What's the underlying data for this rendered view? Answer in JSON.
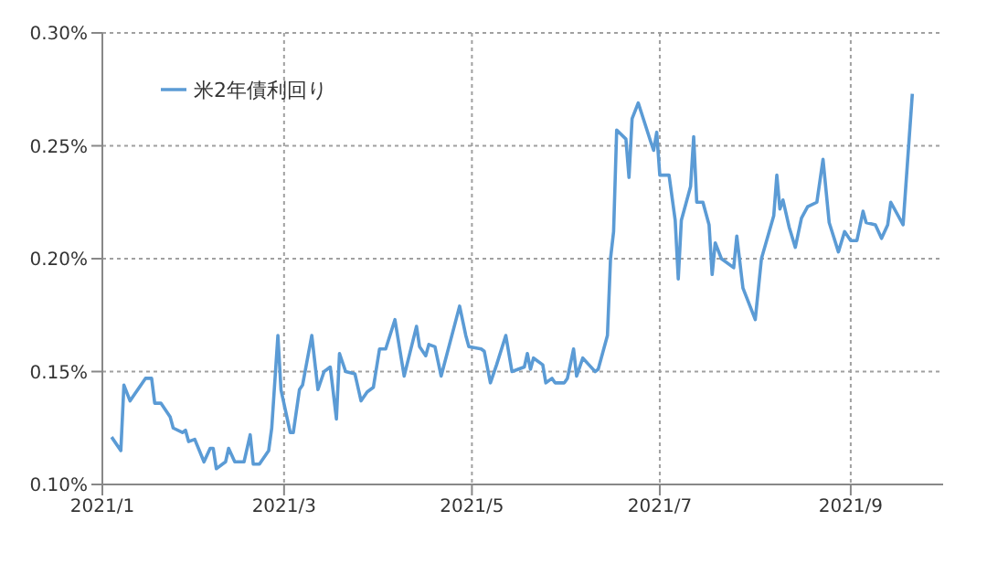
{
  "chart_data": {
    "type": "line",
    "x": [
      "2021-01-04",
      "2021-01-07",
      "2021-01-08",
      "2021-01-10",
      "2021-01-15",
      "2021-01-17",
      "2021-01-18",
      "2021-01-20",
      "2021-01-23",
      "2021-01-24",
      "2021-01-27",
      "2021-01-28",
      "2021-01-29",
      "2021-01-31",
      "2021-02-03",
      "2021-02-05",
      "2021-02-06",
      "2021-02-07",
      "2021-02-10",
      "2021-02-11",
      "2021-02-13",
      "2021-02-16",
      "2021-02-18",
      "2021-02-19",
      "2021-02-21",
      "2021-02-24",
      "2021-02-25",
      "2021-02-27",
      "2021-02-28",
      "2021-03-03",
      "2021-03-04",
      "2021-03-06",
      "2021-03-07",
      "2021-03-10",
      "2021-03-12",
      "2021-03-14",
      "2021-03-16",
      "2021-03-18",
      "2021-03-19",
      "2021-03-21",
      "2021-03-24",
      "2021-03-26",
      "2021-03-28",
      "2021-03-30",
      "2021-04-01",
      "2021-04-03",
      "2021-04-06",
      "2021-04-09",
      "2021-04-13",
      "2021-04-14",
      "2021-04-16",
      "2021-04-17",
      "2021-04-19",
      "2021-04-21",
      "2021-04-27",
      "2021-04-29",
      "2021-04-30",
      "2021-05-04",
      "2021-05-05",
      "2021-05-07",
      "2021-05-09",
      "2021-05-12",
      "2021-05-14",
      "2021-05-18",
      "2021-05-19",
      "2021-05-20",
      "2021-05-21",
      "2021-05-24",
      "2021-05-25",
      "2021-05-27",
      "2021-05-28",
      "2021-05-31",
      "2021-06-01",
      "2021-06-03",
      "2021-06-04",
      "2021-06-06",
      "2021-06-08",
      "2021-06-10",
      "2021-06-11",
      "2021-06-14",
      "2021-06-15",
      "2021-06-16",
      "2021-06-17",
      "2021-06-20",
      "2021-06-21",
      "2021-06-22",
      "2021-06-24",
      "2021-06-28",
      "2021-06-29",
      "2021-06-30",
      "2021-07-01",
      "2021-07-04",
      "2021-07-06",
      "2021-07-07",
      "2021-07-08",
      "2021-07-11",
      "2021-07-12",
      "2021-07-13",
      "2021-07-15",
      "2021-07-17",
      "2021-07-18",
      "2021-07-19",
      "2021-07-21",
      "2021-07-25",
      "2021-07-26",
      "2021-07-28",
      "2021-08-01",
      "2021-08-03",
      "2021-08-07",
      "2021-08-08",
      "2021-08-09",
      "2021-08-10",
      "2021-08-12",
      "2021-08-14",
      "2021-08-16",
      "2021-08-18",
      "2021-08-21",
      "2021-08-23",
      "2021-08-25",
      "2021-08-28",
      "2021-08-30",
      "2021-09-01",
      "2021-09-03",
      "2021-09-05",
      "2021-09-06",
      "2021-09-09",
      "2021-09-11",
      "2021-09-13",
      "2021-09-14",
      "2021-09-18",
      "2021-09-21"
    ],
    "series": [
      {
        "name": "米2年債利回り",
        "color": "#5b9bd5",
        "values": [
          0.121,
          0.115,
          0.144,
          0.137,
          0.147,
          0.147,
          0.136,
          0.136,
          0.13,
          0.125,
          0.123,
          0.124,
          0.119,
          0.12,
          0.11,
          0.116,
          0.116,
          0.107,
          0.11,
          0.116,
          0.11,
          0.11,
          0.122,
          0.109,
          0.109,
          0.115,
          0.125,
          0.166,
          0.142,
          0.123,
          0.123,
          0.142,
          0.144,
          0.166,
          0.142,
          0.15,
          0.152,
          0.129,
          0.158,
          0.15,
          0.149,
          0.137,
          0.141,
          0.143,
          0.16,
          0.16,
          0.173,
          0.148,
          0.17,
          0.161,
          0.157,
          0.162,
          0.161,
          0.148,
          0.179,
          0.166,
          0.161,
          0.16,
          0.159,
          0.145,
          0.153,
          0.166,
          0.15,
          0.152,
          0.158,
          0.151,
          0.156,
          0.153,
          0.145,
          0.147,
          0.145,
          0.145,
          0.147,
          0.16,
          0.148,
          0.156,
          0.153,
          0.15,
          0.151,
          0.166,
          0.2,
          0.212,
          0.257,
          0.253,
          0.236,
          0.262,
          0.269,
          0.252,
          0.248,
          0.256,
          0.237,
          0.237,
          0.217,
          0.191,
          0.217,
          0.232,
          0.254,
          0.225,
          0.225,
          0.215,
          0.193,
          0.207,
          0.2,
          0.196,
          0.21,
          0.187,
          0.173,
          0.2,
          0.219,
          0.237,
          0.222,
          0.226,
          0.214,
          0.205,
          0.218,
          0.223,
          0.225,
          0.244,
          0.216,
          0.203,
          0.212,
          0.208,
          0.208,
          0.221,
          0.216,
          0.215,
          0.209,
          0.215,
          0.225,
          0.215,
          0.273
        ]
      }
    ],
    "xlim": [
      "2021-01-01",
      "2021-10-01"
    ],
    "xticks": [
      {
        "value": "2021-01-01",
        "label": "2021/1"
      },
      {
        "value": "2021-03-01",
        "label": "2021/3"
      },
      {
        "value": "2021-05-01",
        "label": "2021/5"
      },
      {
        "value": "2021-07-01",
        "label": "2021/7"
      },
      {
        "value": "2021-09-01",
        "label": "2021/9"
      }
    ],
    "ylim": [
      0.1,
      0.3
    ],
    "yticks": [
      {
        "value": 0.1,
        "label": "0.10%"
      },
      {
        "value": 0.15,
        "label": "0.15%"
      },
      {
        "value": 0.2,
        "label": "0.20%"
      },
      {
        "value": 0.25,
        "label": "0.25%"
      },
      {
        "value": 0.3,
        "label": "0.30%"
      }
    ],
    "grid": true,
    "legend": "top left",
    "marker": "none",
    "line_style": "solid"
  }
}
